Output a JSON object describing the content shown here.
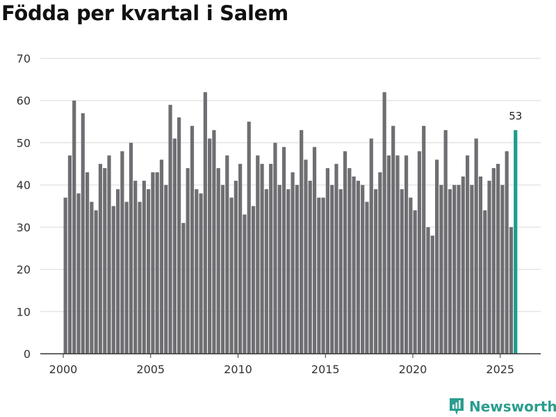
{
  "title": "Födda per kvartal i Salem",
  "brand": {
    "name": "Newsworthy",
    "color": "#2a9d8f"
  },
  "colors": {
    "bar": "#6e6e73",
    "highlight": "#1a9e8f",
    "grid": "#d9d9d9",
    "axis": "#333333"
  },
  "chart_data": {
    "type": "bar",
    "title": "Födda per kvartal i Salem",
    "xlabel": "",
    "ylabel": "",
    "ylim": [
      0,
      70
    ],
    "yticks": [
      0,
      10,
      20,
      30,
      40,
      50,
      60,
      70
    ],
    "xticks": [
      2000,
      2005,
      2010,
      2015,
      2020,
      2025
    ],
    "grid": true,
    "start": "2000 Q1",
    "end": "2025 Q4",
    "values": [
      37,
      47,
      60,
      38,
      57,
      43,
      36,
      34,
      45,
      44,
      47,
      35,
      39,
      48,
      36,
      50,
      41,
      36,
      41,
      39,
      43,
      43,
      46,
      40,
      59,
      51,
      56,
      31,
      44,
      54,
      39,
      38,
      62,
      51,
      53,
      44,
      40,
      47,
      37,
      41,
      45,
      33,
      55,
      35,
      47,
      45,
      39,
      45,
      50,
      40,
      49,
      39,
      43,
      40,
      53,
      46,
      41,
      49,
      37,
      37,
      44,
      40,
      45,
      39,
      48,
      44,
      42,
      41,
      40,
      36,
      51,
      39,
      43,
      62,
      47,
      54,
      47,
      39,
      47,
      37,
      34,
      48,
      54,
      30,
      28,
      46,
      40,
      53,
      39,
      40,
      40,
      42,
      47,
      40,
      51,
      42,
      34,
      41,
      44,
      45,
      40,
      48,
      30,
      53
    ],
    "highlight": {
      "value": 53,
      "label": "53"
    }
  }
}
